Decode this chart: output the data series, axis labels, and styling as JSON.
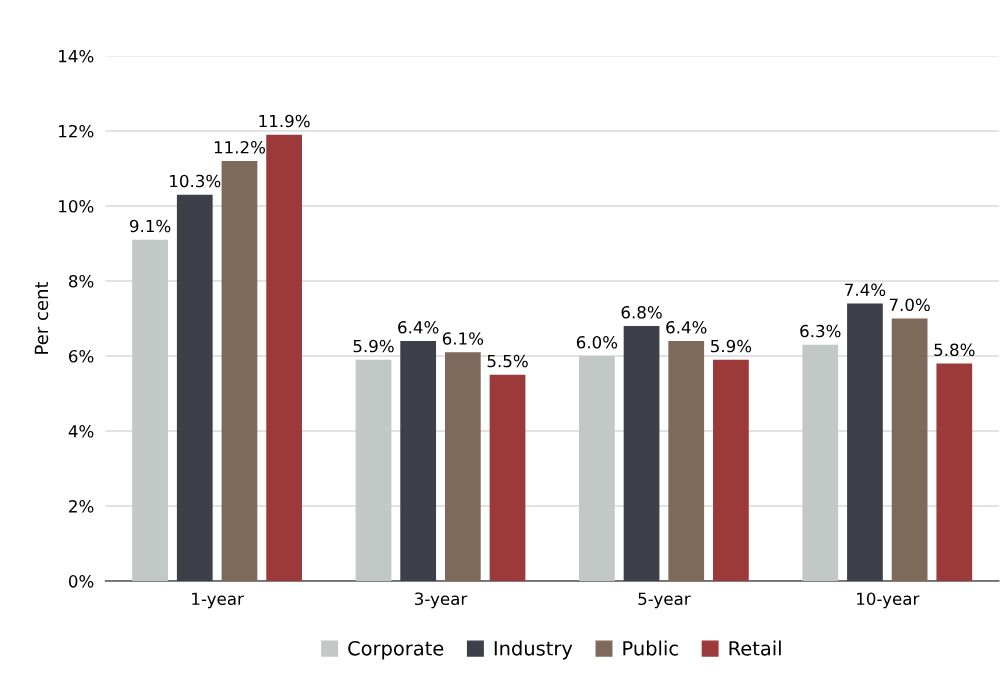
{
  "chart_data": {
    "type": "bar",
    "ylabel": "Per cent",
    "categories": [
      "1-year",
      "3-year",
      "5-year",
      "10-year"
    ],
    "series": [
      {
        "name": "Corporate",
        "color": "#c1c8c6",
        "values": [
          9.1,
          5.9,
          6.0,
          6.3
        ],
        "value_labels": [
          "9.1%",
          "5.9%",
          "6.0%",
          "6.3%"
        ]
      },
      {
        "name": "Industry",
        "color": "#3e4049",
        "values": [
          10.3,
          6.4,
          6.8,
          7.4
        ],
        "value_labels": [
          "10.3%",
          "6.4%",
          "6.8%",
          "7.4%"
        ]
      },
      {
        "name": "Public",
        "color": "#7e6a5b",
        "values": [
          11.2,
          6.1,
          6.4,
          7.0
        ],
        "value_labels": [
          "11.2%",
          "6.1%",
          "6.4%",
          "7.0%"
        ]
      },
      {
        "name": "Retail",
        "color": "#9c393b",
        "values": [
          11.9,
          5.5,
          5.9,
          5.8
        ],
        "value_labels": [
          "11.9%",
          "5.5%",
          "5.9%",
          "5.8%"
        ]
      }
    ],
    "ylim": [
      0,
      14
    ],
    "yticks": [
      {
        "value": 0,
        "label": "0%"
      },
      {
        "value": 2,
        "label": "2%"
      },
      {
        "value": 4,
        "label": "4%"
      },
      {
        "value": 6,
        "label": "6%"
      },
      {
        "value": 8,
        "label": "8%"
      },
      {
        "value": 10,
        "label": "10%"
      },
      {
        "value": 12,
        "label": "12%"
      },
      {
        "value": 14,
        "label": "14%"
      }
    ],
    "grid": "y",
    "legend": "bottom"
  }
}
